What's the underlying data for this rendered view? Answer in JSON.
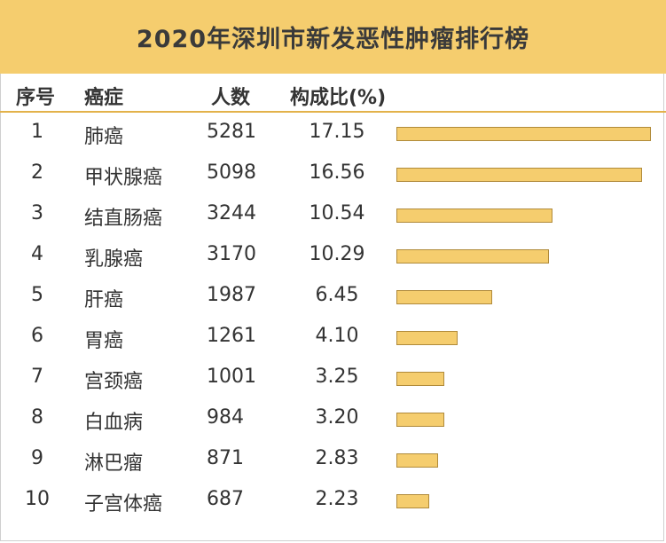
{
  "title": "2020年深圳市新发恶性肿瘤排行榜",
  "headers": {
    "index": "序号",
    "cancer": "癌症",
    "count": "人数",
    "ratio": "构成比(%)"
  },
  "colors": {
    "title_bg": "#f5cd6e",
    "bar_fill": "#f5cd6e",
    "bar_border": "#b08a3a"
  },
  "chart_data": {
    "type": "table",
    "columns": [
      "序号",
      "癌症",
      "人数",
      "构成比(%)"
    ],
    "rows": [
      {
        "index": "1",
        "cancer": "肺癌",
        "count": "5281",
        "ratio": "17.15",
        "value": 17.15
      },
      {
        "index": "2",
        "cancer": "甲状腺癌",
        "count": "5098",
        "ratio": "16.56",
        "value": 16.56
      },
      {
        "index": "3",
        "cancer": "结直肠癌",
        "count": "3244",
        "ratio": "10.54",
        "value": 10.54
      },
      {
        "index": "4",
        "cancer": "乳腺癌",
        "count": "3170",
        "ratio": "10.29",
        "value": 10.29
      },
      {
        "index": "5",
        "cancer": "肝癌",
        "count": "1987",
        "ratio": "6.45",
        "value": 6.45
      },
      {
        "index": "6",
        "cancer": "胃癌",
        "count": "1261",
        "ratio": "4.10",
        "value": 4.1
      },
      {
        "index": "7",
        "cancer": "宫颈癌",
        "count": "1001",
        "ratio": "3.25",
        "value": 3.25
      },
      {
        "index": "8",
        "cancer": "白血病",
        "count": "984",
        "ratio": "3.20",
        "value": 3.2
      },
      {
        "index": "9",
        "cancer": "淋巴瘤",
        "count": "871",
        "ratio": "2.83",
        "value": 2.83
      },
      {
        "index": "10",
        "cancer": "子宫体癌",
        "count": "687",
        "ratio": "2.23",
        "value": 2.23
      }
    ],
    "bar_max": 17.15
  }
}
